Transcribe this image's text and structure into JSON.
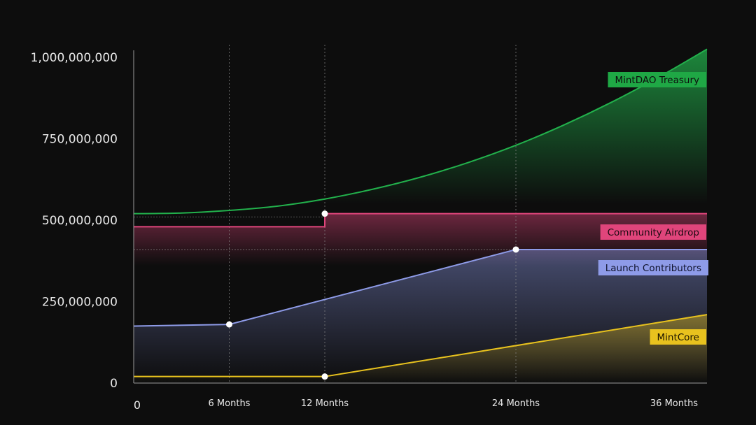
{
  "chart_data": {
    "type": "area",
    "y_tick_labels": [
      "1,000,000,000",
      "750,000,000",
      "500,000,000",
      "250,000,000",
      "0"
    ],
    "y_ticks": [
      1000000000,
      750000000,
      500000000,
      250000000,
      0
    ],
    "x_tick_labels": [
      "0",
      "6 Months",
      "12 Months",
      "24 Months",
      "36 Months"
    ],
    "x_ticks": [
      0,
      6,
      12,
      24,
      36
    ],
    "xlim": [
      0,
      36
    ],
    "ylim": [
      0,
      1000000000
    ],
    "series": [
      {
        "name": "MintDAO Treasury",
        "color": "#22b14c",
        "x": [
          0,
          3,
          6,
          9,
          12,
          15,
          18,
          21,
          24,
          27,
          30,
          33,
          36
        ],
        "values": [
          520000000,
          522000000,
          530000000,
          543000000,
          565000000,
          595000000,
          632000000,
          677000000,
          730000000,
          792000000,
          862000000,
          940000000,
          1025000000
        ]
      },
      {
        "name": "Community Airdrop",
        "color": "#e0457b",
        "x": [
          0,
          12,
          12,
          36
        ],
        "values": [
          480000000,
          480000000,
          520000000,
          520000000
        ]
      },
      {
        "name": "Launch Contributors",
        "color": "#8e9be8",
        "x": [
          0,
          6,
          24,
          36
        ],
        "values": [
          175000000,
          180000000,
          410000000,
          410000000
        ]
      },
      {
        "name": "MintCore",
        "color": "#e8c21e",
        "x": [
          0,
          12,
          36
        ],
        "values": [
          20000000,
          20000000,
          210000000
        ]
      }
    ],
    "markers": [
      {
        "series": "Community Airdrop",
        "x": 12,
        "y": 520000000
      },
      {
        "series": "Launch Contributors",
        "x": 6,
        "y": 180000000
      },
      {
        "series": "Launch Contributors",
        "x": 24,
        "y": 410000000
      },
      {
        "series": "MintCore",
        "x": 12,
        "y": 20000000
      }
    ],
    "legend": [
      {
        "label": "MintDAO Treasury",
        "bg": "#1fa845",
        "fg": "#0d0d0d"
      },
      {
        "label": "Community Airdrop",
        "bg": "#e0457b",
        "fg": "#1a0a10"
      },
      {
        "label": "Launch Contributors",
        "bg": "#8e9be8",
        "fg": "#10142e"
      },
      {
        "label": "MintCore",
        "bg": "#e8c21e",
        "fg": "#1a1400"
      }
    ],
    "grid": "vertical dotted at 6, 12, 24 months"
  }
}
